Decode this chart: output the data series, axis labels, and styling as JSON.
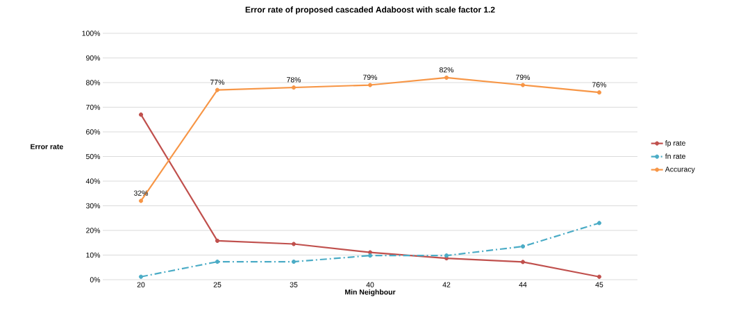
{
  "chart_data": {
    "type": "line",
    "title": "Error rate of proposed cascaded Adaboost with scale factor 1.2",
    "xlabel": "Min Neighbour",
    "ylabel": "Error rate",
    "categories": [
      "20",
      "25",
      "35",
      "40",
      "42",
      "44",
      "45"
    ],
    "series": [
      {
        "name": "fp rate",
        "color": "#c0504d",
        "values": [
          67,
          15.8,
          14.5,
          11.1,
          8.7,
          7.2,
          1.2
        ],
        "line_style": "solid",
        "marker": "circle"
      },
      {
        "name": "fn rate",
        "color": "#4bacc6",
        "values": [
          1.2,
          7.3,
          7.3,
          9.8,
          9.8,
          13.5,
          23
        ],
        "line_style": "dashdot",
        "marker": "circle"
      },
      {
        "name": "Accuracy",
        "color": "#f79646",
        "values": [
          32,
          77,
          78,
          79,
          82,
          79,
          76
        ],
        "line_style": "solid",
        "marker": "circle",
        "value_labels": [
          "32%",
          "77%",
          "78%",
          "79%",
          "82%",
          "79%",
          "76%"
        ]
      }
    ],
    "ylim": [
      0,
      100
    ],
    "yticks": [
      {
        "value": 0,
        "label": "0%"
      },
      {
        "value": 10,
        "label": "10%"
      },
      {
        "value": 20,
        "label": "20%"
      },
      {
        "value": 30,
        "label": "30%"
      },
      {
        "value": 40,
        "label": "40%"
      },
      {
        "value": 50,
        "label": "50%"
      },
      {
        "value": 60,
        "label": "60%"
      },
      {
        "value": 70,
        "label": "70%"
      },
      {
        "value": 80,
        "label": "80%"
      },
      {
        "value": 90,
        "label": "90%"
      },
      {
        "value": 100,
        "label": "100%"
      }
    ],
    "grid": "y",
    "legend": "right"
  }
}
